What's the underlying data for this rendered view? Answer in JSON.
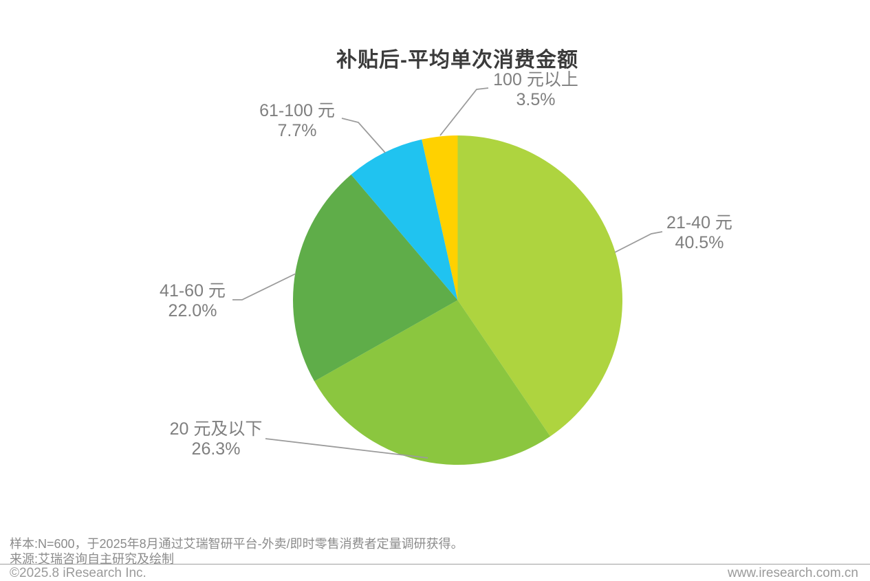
{
  "title": "补贴后-平均单次消费金额",
  "chart_data": {
    "type": "pie",
    "title": "补贴后-平均单次消费金额",
    "unit": "%",
    "start_angle_deg": 0,
    "direction": "clockwise",
    "slices": [
      {
        "label": "21-40 元",
        "value": 40.5,
        "pct_label": "40.5%",
        "color": "#aed43f"
      },
      {
        "label": "20 元及以下",
        "value": 26.3,
        "pct_label": "26.3%",
        "color": "#8bc63f"
      },
      {
        "label": "41-60 元",
        "value": 22.0,
        "pct_label": "22.0%",
        "color": "#5fad49"
      },
      {
        "label": "61-100 元",
        "value": 7.7,
        "pct_label": "7.7%",
        "color": "#20c3f0"
      },
      {
        "label": "100 元以上",
        "value": 3.5,
        "pct_label": "3.5%",
        "color": "#ffd100"
      }
    ],
    "label_color": "#7f7f7f",
    "leader_line_color": "#9b9b9b"
  },
  "footer": {
    "sample_note": "样本:N=600，于2025年8月通过艾瑞智研平台-外卖/即时零售消费者定量调研获得。",
    "source_note": "来源:艾瑞咨询自主研究及绘制",
    "copyright": "©2025.8 iResearch Inc.",
    "website": "www.iresearch.com.cn"
  }
}
